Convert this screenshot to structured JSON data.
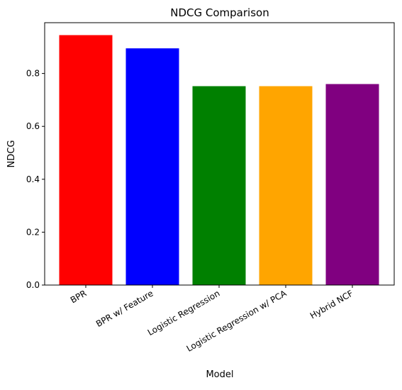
{
  "chart_data": {
    "type": "bar",
    "title": "NDCG Comparison",
    "xlabel": "Model",
    "ylabel": "NDCG",
    "categories": [
      "BPR",
      "BPR w/ Feature",
      "Logistic Regression",
      "Logistic Regression w/ PCA",
      "Hybrid NCF"
    ],
    "values": [
      0.945,
      0.895,
      0.752,
      0.752,
      0.76
    ],
    "colors": [
      "#ff0000",
      "#0000ff",
      "#008000",
      "#ffa500",
      "#800080"
    ],
    "ylim": [
      0,
      0.992
    ],
    "yticks": [
      0.0,
      0.2,
      0.4,
      0.6,
      0.8
    ],
    "ytick_labels": [
      "0.0",
      "0.2",
      "0.4",
      "0.6",
      "0.8"
    ],
    "grid": false,
    "legend": "none"
  }
}
